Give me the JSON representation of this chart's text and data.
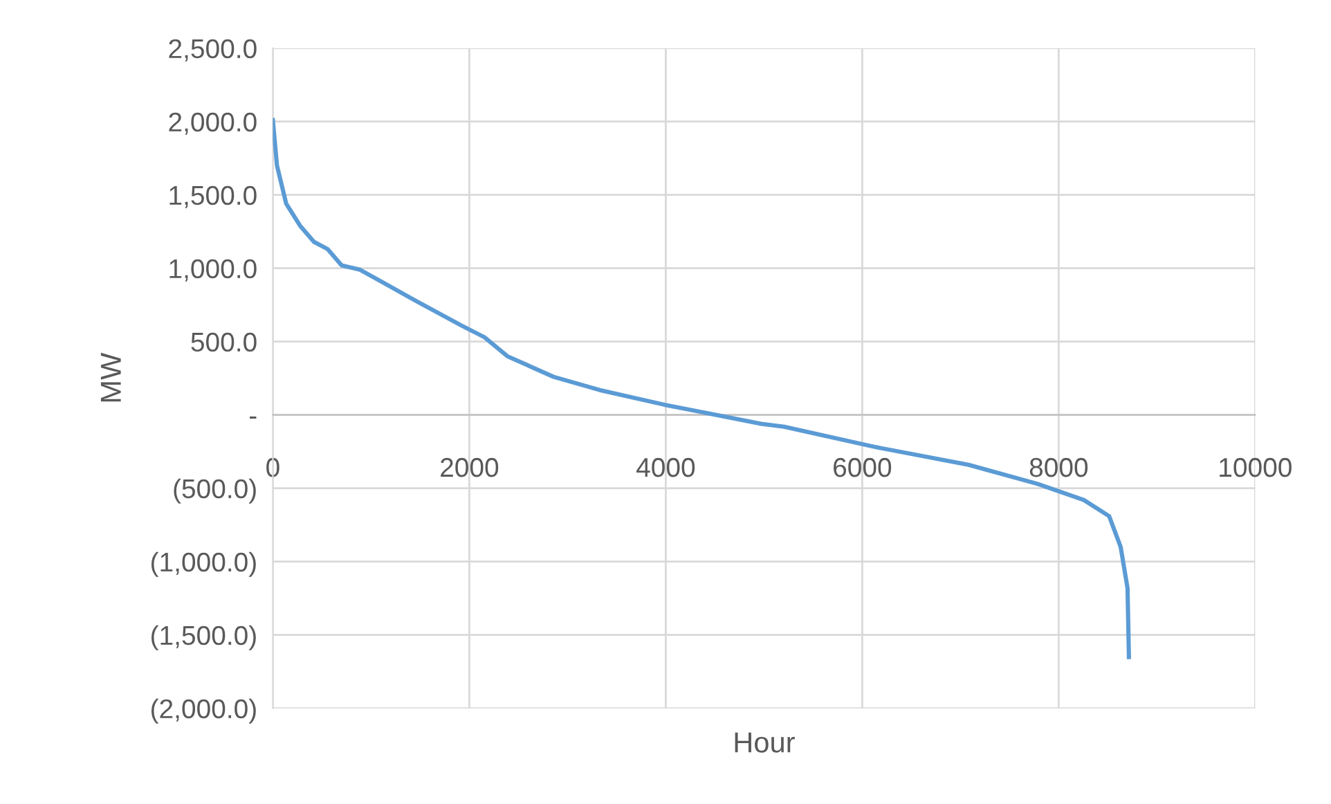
{
  "chart_data": {
    "type": "line",
    "xlabel": "Hour",
    "ylabel": "MW",
    "x": [
      0,
      42,
      136,
      277,
      418,
      559,
      700,
      887,
      1075,
      1450,
      1919,
      2154,
      2389,
      2858,
      3327,
      3985,
      4970,
      5205,
      6143,
      7082,
      7786,
      8256,
      8514,
      8631,
      8701,
      8715
    ],
    "series": [
      {
        "color": "#5b9bd5",
        "values": [
          2010,
          1700,
          1440,
          1290,
          1180,
          1130,
          1020,
          990,
          920,
          780,
          610,
          530,
          400,
          260,
          170,
          70,
          -60,
          -80,
          -220,
          -340,
          -470,
          -580,
          -690,
          -900,
          -1180,
          -1650
        ]
      }
    ],
    "xlim": [
      0,
      10000
    ],
    "xticks": [
      0,
      2000,
      4000,
      6000,
      8000,
      10000
    ],
    "ylim": [
      -2000,
      2500
    ],
    "yticks": [
      {
        "value": 2500,
        "label": "2,500.0"
      },
      {
        "value": 2000,
        "label": "2,000.0"
      },
      {
        "value": 1500,
        "label": "1,500.0"
      },
      {
        "value": 1000,
        "label": "1,000.0"
      },
      {
        "value": 500,
        "label": "500.0"
      },
      {
        "value": 0,
        "label": "-"
      },
      {
        "value": -500,
        "label": "(500.0)"
      },
      {
        "value": -1000,
        "label": "(1,000.0)"
      },
      {
        "value": -1500,
        "label": "(1,500.0)"
      },
      {
        "value": -2000,
        "label": "(2,000.0)"
      }
    ],
    "grid": true,
    "marker": "none",
    "line_style": "solid"
  }
}
